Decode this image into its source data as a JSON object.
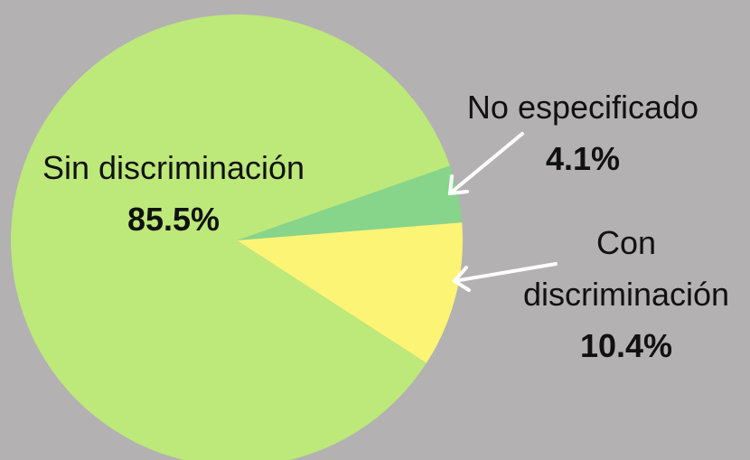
{
  "chart_data": {
    "type": "pie",
    "categories": [
      "No especificado",
      "Con discriminación",
      "Sin discriminación"
    ],
    "values": [
      4.1,
      10.4,
      85.5
    ],
    "value_labels": [
      "4.1%",
      "10.4%",
      "85.5%"
    ],
    "colors": [
      "#86d58a",
      "#fbf474",
      "#bde87a"
    ]
  }
}
